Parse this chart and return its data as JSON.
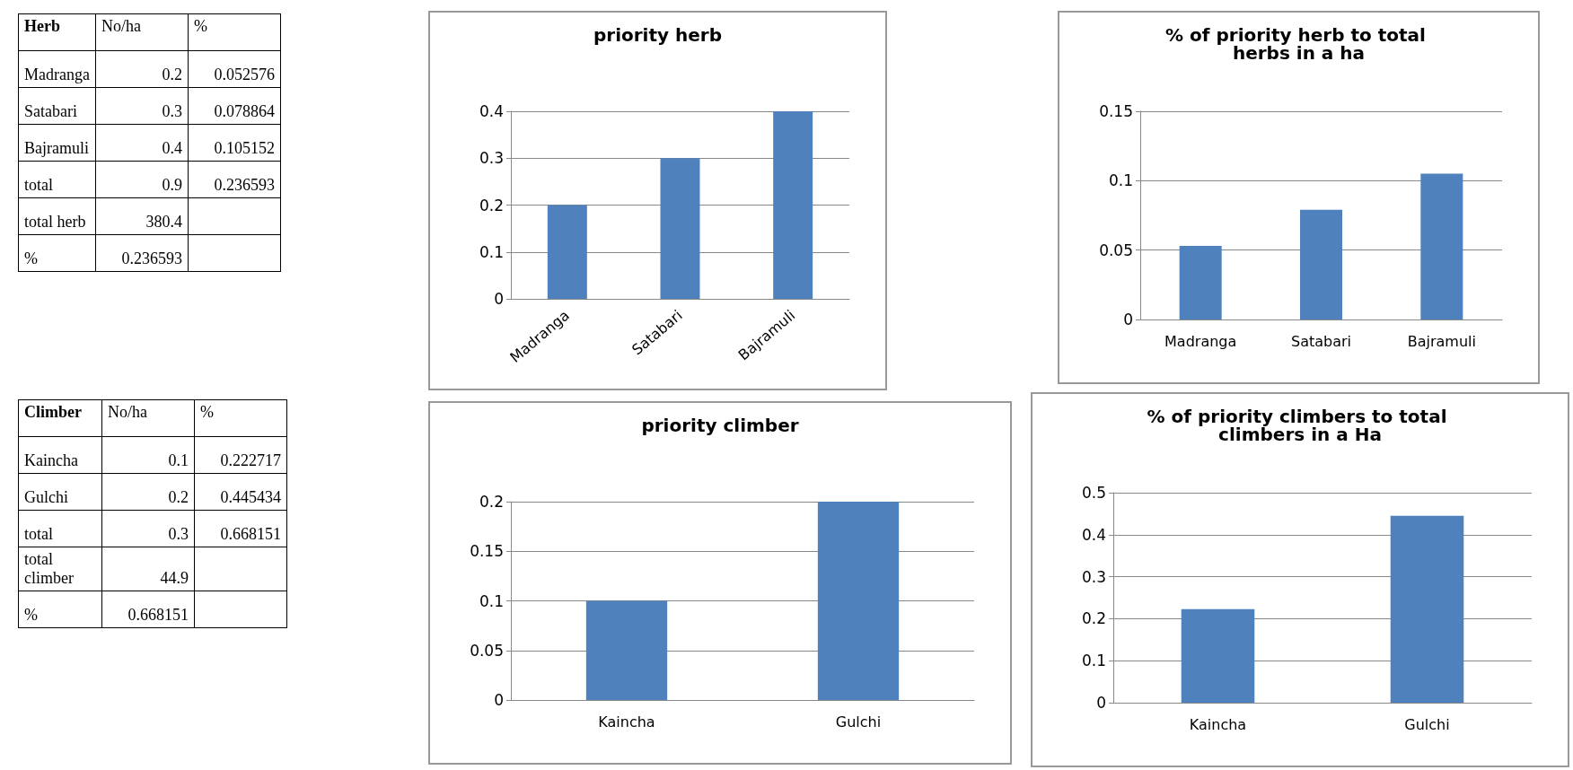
{
  "chart_data": [
    {
      "type": "other",
      "categories": [
        "Herb",
        "No/ha",
        "%"
      ],
      "cell_labels": [
        [
          "Madranga",
          "0.2",
          "0.052576"
        ],
        [
          "Satabari",
          "0.3",
          "0.078864"
        ],
        [
          "Bajramuli",
          "0.4",
          "0.105152"
        ],
        [
          "total",
          "0.9",
          "0.236593"
        ],
        [
          "total herb",
          "380.4",
          null
        ],
        [
          "%",
          "0.236593",
          null
        ]
      ]
    },
    {
      "type": "bar",
      "title": "priority herb",
      "categories": [
        "Madranga",
        "Satabari",
        "Bajramuli"
      ],
      "values": [
        0.2,
        0.3,
        0.4
      ],
      "color": "#4f81bd",
      "ylim": [
        0,
        0.4
      ],
      "yticks": [
        0,
        0.1,
        0.2,
        0.3,
        0.4
      ],
      "grid": "y"
    },
    {
      "type": "bar",
      "title": "% of priority herb to total herbs in a ha",
      "categories": [
        "Madranga",
        "Satabari",
        "Bajramuli"
      ],
      "values": [
        0.053,
        0.079,
        0.105
      ],
      "color": "#4f81bd",
      "ylim": [
        0,
        0.15
      ],
      "yticks": [
        0,
        0.05,
        0.1,
        0.15
      ],
      "grid": "y"
    },
    {
      "type": "other",
      "categories": [
        "Climber",
        "No/ha",
        "%"
      ],
      "cell_labels": [
        [
          "Kaincha",
          "0.1",
          "0.222717"
        ],
        [
          "Gulchi",
          "0.2",
          "0.445434"
        ],
        [
          "total",
          "0.3",
          "0.668151"
        ],
        [
          "total climber",
          "44.9",
          null
        ],
        [
          "%",
          "0.668151",
          null
        ]
      ]
    },
    {
      "type": "bar",
      "title": "priority climber",
      "categories": [
        "Kaincha",
        "Gulchi"
      ],
      "values": [
        0.1,
        0.2
      ],
      "color": "#4f81bd",
      "ylim": [
        0,
        0.2
      ],
      "yticks": [
        0,
        0.05,
        0.1,
        0.15,
        0.2
      ],
      "grid": "y"
    },
    {
      "type": "bar",
      "title": "% of priority climbers to total climbers in a Ha",
      "categories": [
        "Kaincha",
        "Gulchi"
      ],
      "values": [
        0.223,
        0.445
      ],
      "color": "#4f81bd",
      "ylim": [
        0,
        0.5
      ],
      "yticks": [
        0,
        0.1,
        0.2,
        0.3,
        0.4,
        0.5
      ],
      "grid": "y"
    }
  ]
}
